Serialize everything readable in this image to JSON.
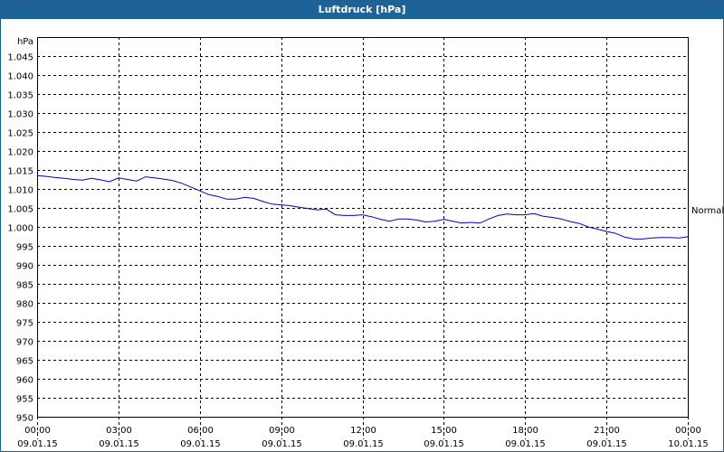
{
  "window": {
    "title": "Luftdruck [hPa]"
  },
  "chart_data": {
    "type": "line",
    "title": "Luftdruck [hPa]",
    "ylabel": "hPa",
    "ylim": [
      950,
      1050
    ],
    "yticks": [
      950,
      955,
      960,
      965,
      970,
      975,
      980,
      985,
      990,
      995,
      1000,
      1005,
      1010,
      1015,
      1020,
      1025,
      1030,
      1035,
      1040,
      1045
    ],
    "ytick_labels": [
      "950",
      "955",
      "960",
      "965",
      "970",
      "975",
      "980",
      "985",
      "990",
      "995",
      "1.000",
      "1.005",
      "1.010",
      "1.015",
      "1.020",
      "1.025",
      "1.030",
      "1.035",
      "1.040",
      "1.045"
    ],
    "xlim_hours": [
      0,
      24
    ],
    "xticks": [
      {
        "hour": 0,
        "time": "00:00",
        "date": "09.01.15"
      },
      {
        "hour": 3,
        "time": "03:00",
        "date": "09.01.15"
      },
      {
        "hour": 6,
        "time": "06:00",
        "date": "09.01.15"
      },
      {
        "hour": 9,
        "time": "09:00",
        "date": "09.01.15"
      },
      {
        "hour": 12,
        "time": "12:00",
        "date": "09.01.15"
      },
      {
        "hour": 15,
        "time": "15:00",
        "date": "09.01.15"
      },
      {
        "hour": 18,
        "time": "18:00",
        "date": "09.01.15"
      },
      {
        "hour": 21,
        "time": "21:00",
        "date": "09.01.15"
      },
      {
        "hour": 24,
        "time": "00:00",
        "date": "10.01.15"
      }
    ],
    "grid": true,
    "reference_line": {
      "label": "Normal",
      "value": 1004.5
    },
    "series": [
      {
        "color": "#0000cc",
        "x": [
          0,
          0.33,
          0.67,
          1.0,
          1.33,
          1.67,
          2.0,
          2.33,
          2.67,
          3.0,
          3.33,
          3.67,
          4.0,
          4.33,
          4.67,
          5.0,
          5.33,
          5.67,
          6.0,
          6.33,
          6.67,
          7.0,
          7.33,
          7.67,
          8.0,
          8.33,
          8.67,
          9.0,
          9.33,
          9.67,
          10.0,
          10.33,
          10.67,
          11.0,
          11.33,
          11.67,
          12.0,
          12.33,
          12.67,
          13.0,
          13.33,
          13.67,
          14.0,
          14.33,
          14.67,
          15.0,
          15.33,
          15.67,
          16.0,
          16.33,
          16.67,
          17.0,
          17.33,
          17.67,
          18.0,
          18.33,
          18.67,
          19.0,
          19.33,
          19.67,
          20.0,
          20.33,
          20.67,
          21.0,
          21.33,
          21.67,
          22.0,
          22.33,
          22.67,
          23.0,
          23.33,
          23.67,
          24.0
        ],
        "y": [
          1013.5,
          1013.3,
          1013.0,
          1012.8,
          1012.5,
          1012.3,
          1012.8,
          1012.4,
          1011.9,
          1012.9,
          1012.5,
          1012.1,
          1013.2,
          1012.9,
          1012.6,
          1012.2,
          1011.5,
          1010.5,
          1009.5,
          1008.5,
          1008.0,
          1007.3,
          1007.3,
          1007.8,
          1007.5,
          1006.7,
          1006.0,
          1005.8,
          1005.6,
          1005.2,
          1004.8,
          1004.5,
          1004.7,
          1003.2,
          1003.0,
          1003.0,
          1003.2,
          1002.7,
          1002.0,
          1001.5,
          1002.1,
          1002.1,
          1001.8,
          1001.3,
          1001.5,
          1002.0,
          1001.5,
          1001.0,
          1001.2,
          1001.0,
          1002.1,
          1003.0,
          1003.4,
          1003.2,
          1003.2,
          1003.5,
          1002.8,
          1002.5,
          1002.1,
          1001.4,
          1000.9,
          1000.0,
          999.4,
          998.8,
          998.3,
          997.3,
          996.8,
          996.8,
          997.1,
          997.2,
          997.2,
          997.1,
          997.4
        ]
      }
    ]
  }
}
